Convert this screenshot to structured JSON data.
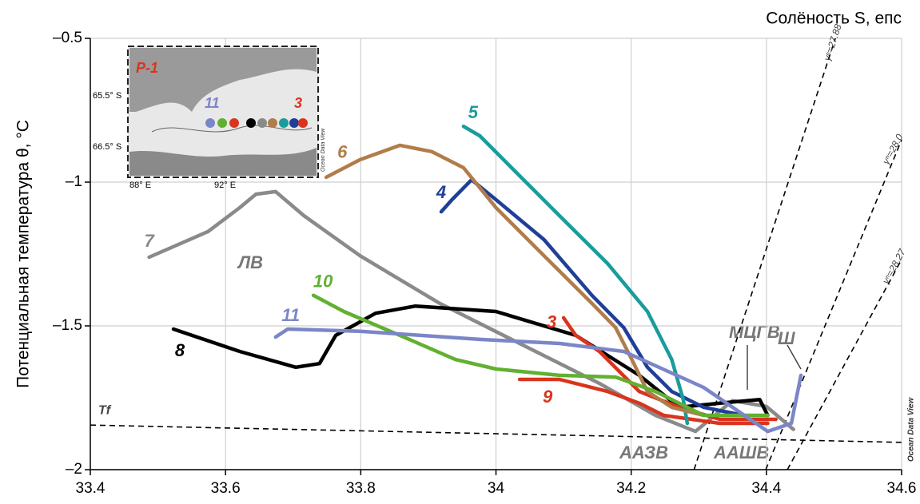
{
  "chart_data": {
    "type": "line",
    "x_label": "Солёность S, епс",
    "y_label": "Потенциальная температура θ, °C",
    "xlim": [
      33.4,
      34.6
    ],
    "ylim": [
      -2,
      -0.5
    ],
    "xticks": [
      33.4,
      33.6,
      33.8,
      34,
      34.2,
      34.4,
      34.6
    ],
    "yticks": [
      {
        "value": -0.5,
        "label": "–0.5"
      },
      {
        "value": -1,
        "label": "–1"
      },
      {
        "value": -1.5,
        "label": "–1.5"
      },
      {
        "value": -2,
        "label": "–2"
      }
    ],
    "grid": true,
    "series": [
      {
        "name": "3",
        "color": "#d9341e",
        "x": [
          34.1,
          34.118,
          34.153,
          34.212,
          34.271,
          34.331,
          34.414
        ],
        "values": [
          -1.472,
          -1.533,
          -1.589,
          -1.728,
          -1.783,
          -1.825,
          -1.825
        ]
      },
      {
        "name": "4",
        "color": "#1f3f99",
        "x": [
          33.919,
          33.935,
          33.964,
          34.0,
          34.071,
          34.142,
          34.189,
          34.224,
          34.26,
          34.307,
          34.366
        ],
        "values": [
          -1.103,
          -1.061,
          -0.992,
          -1.061,
          -1.2,
          -1.394,
          -1.506,
          -1.644,
          -1.728,
          -1.783,
          -1.811
        ]
      },
      {
        "name": "5",
        "color": "#1a9c9c",
        "x": [
          33.952,
          33.976,
          34.023,
          34.094,
          34.165,
          34.224,
          34.26,
          34.277,
          34.283
        ],
        "values": [
          -0.806,
          -0.839,
          -0.95,
          -1.117,
          -1.283,
          -1.45,
          -1.617,
          -1.756,
          -1.839
        ]
      },
      {
        "name": "6",
        "color": "#b07d4a",
        "x": [
          33.749,
          33.799,
          33.858,
          33.905,
          33.952,
          34.0,
          34.071,
          34.142,
          34.177,
          34.201,
          34.224,
          34.26,
          34.307
        ],
        "values": [
          -0.983,
          -0.922,
          -0.872,
          -0.894,
          -0.95,
          -1.089,
          -1.256,
          -1.422,
          -1.506,
          -1.617,
          -1.728,
          -1.783,
          -1.811
        ]
      },
      {
        "name": "7",
        "color": "#8a8a8a",
        "x": [
          33.487,
          33.574,
          33.621,
          33.645,
          33.674,
          33.716,
          33.799,
          33.917,
          34.035,
          34.153,
          34.236,
          34.295,
          34.35,
          34.4,
          34.44
        ],
        "values": [
          -1.261,
          -1.172,
          -1.089,
          -1.042,
          -1.033,
          -1.117,
          -1.256,
          -1.422,
          -1.561,
          -1.7,
          -1.811,
          -1.867,
          -1.76,
          -1.78,
          -1.86
        ]
      },
      {
        "name": "8",
        "color": "#000000",
        "x": [
          33.523,
          33.621,
          33.704,
          33.739,
          33.763,
          33.822,
          33.881,
          34.0,
          34.118,
          34.212,
          34.271,
          34.331,
          34.39,
          34.402
        ],
        "values": [
          -1.511,
          -1.589,
          -1.644,
          -1.631,
          -1.533,
          -1.456,
          -1.431,
          -1.45,
          -1.533,
          -1.672,
          -1.783,
          -1.769,
          -1.756,
          -1.811
        ]
      },
      {
        "name": "9",
        "color": "#d9341e",
        "x": [
          34.035,
          34.094,
          34.165,
          34.212,
          34.248,
          34.331,
          34.402
        ],
        "values": [
          -1.686,
          -1.686,
          -1.728,
          -1.769,
          -1.811,
          -1.839,
          -1.839
        ]
      },
      {
        "name": "10",
        "color": "#62b031",
        "x": [
          33.73,
          33.775,
          33.858,
          33.94,
          34.0,
          34.094,
          34.177,
          34.236,
          34.307,
          34.402
        ],
        "values": [
          -1.394,
          -1.45,
          -1.533,
          -1.617,
          -1.65,
          -1.672,
          -1.678,
          -1.728,
          -1.811,
          -1.811
        ]
      },
      {
        "name": "11",
        "color": "#7b86c8",
        "x": [
          33.674,
          33.692,
          33.799,
          33.976,
          34.094,
          34.189,
          34.307,
          34.402,
          34.437,
          34.451
        ],
        "values": [
          -1.539,
          -1.511,
          -1.519,
          -1.547,
          -1.561,
          -1.589,
          -1.714,
          -1.867,
          -1.839,
          -1.672
        ]
      }
    ],
    "reference_lines": [
      {
        "label": "Tf",
        "x": [
          33.4,
          34.6
        ],
        "y": [
          -1.845,
          -1.905
        ]
      },
      {
        "label": "γⁿ=27.88",
        "x": [
          34.293,
          34.502
        ],
        "y": [
          -2,
          -0.5
        ]
      },
      {
        "label": "γⁿ=28.0",
        "x": [
          34.399,
          34.6
        ],
        "y": [
          -2,
          -0.853
        ]
      },
      {
        "label": "γⁿ=28.27",
        "x": [
          34.431,
          34.6
        ],
        "y": [
          -2,
          -1.269
        ]
      }
    ],
    "annotations": {
      "lv": "ЛВ",
      "mcgv": "МЦГВ",
      "mcgv_sub": "Ш",
      "aazv": "ААЗВ",
      "aashv": "ААШВ",
      "odv": "Ocean Data View"
    },
    "inset": {
      "station": "P-1",
      "lat1": "65.5° S",
      "lat2": "66.5° S",
      "lon1": "88° E",
      "lon2": "92° E",
      "left": "11",
      "right": "3",
      "odv": "Ocean Data View"
    }
  }
}
